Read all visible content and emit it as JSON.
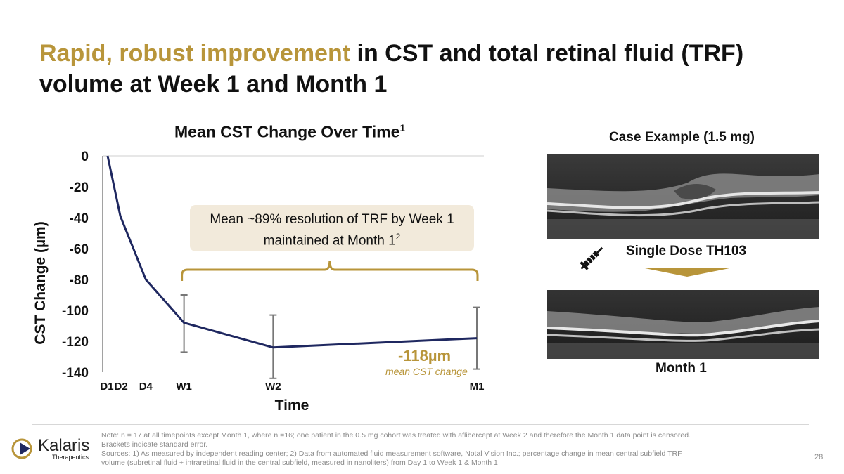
{
  "slide": {
    "title_accent": "Rapid, robust improvement",
    "title_rest": " in CST and total retinal fluid (TRF) volume at Week 1 and Month 1",
    "page_number": "28"
  },
  "chart_data": {
    "type": "line",
    "title": "Mean CST Change Over Time",
    "title_superscript": "1",
    "xlabel": "Time",
    "ylabel": "CST Change (µm)",
    "ylim": [
      -140,
      0
    ],
    "yticks": [
      0,
      -20,
      -40,
      -60,
      -80,
      -100,
      -120,
      -140
    ],
    "x_days": [
      1,
      2,
      4,
      7,
      14,
      30
    ],
    "categories": [
      "D1",
      "D2",
      "D4",
      "W1",
      "W2",
      "M1"
    ],
    "values": [
      0,
      -39,
      -80,
      -108,
      -124,
      -118
    ],
    "error_bars": [
      {
        "category": "W1",
        "low": -127,
        "high": -90
      },
      {
        "category": "W2",
        "low": -144,
        "high": -103
      },
      {
        "category": "M1",
        "low": -138,
        "high": -98
      }
    ],
    "series_color": "#1f2860",
    "grid": false,
    "annotation_value": "-118µm",
    "annotation_caption": "mean CST change",
    "callout_line1": "Mean ~89% resolution of TRF by Week 1",
    "callout_line2": "maintained at Month 1",
    "callout_superscript": "2",
    "bracket_span": [
      "W1",
      "M1"
    ]
  },
  "case": {
    "title": "Case Example (1.5 mg)",
    "dose_label": "Single Dose TH103",
    "month_label": "Month 1",
    "syringe_icon": "syringe-icon",
    "arrow_icon": "down-arrow-icon"
  },
  "footer": {
    "logo_name": "Kalaris",
    "logo_sub": "Therapeutics",
    "note_line1": "Note: n = 17 at all timepoints except Month 1, where n =16; one patient in the 0.5 mg cohort was treated with aflibercept at Week 2 and therefore the  Month 1 data point is censored. Brackets indicate standard error.",
    "note_line2": "Sources: 1) As measured by independent reading center; 2) Data from automated fluid measurement software, Notal Vision Inc.; percentage change in mean central subfield TRF volume (subretinal fluid + intraretinal fluid in the central subfield, measured in nanoliters) from Day 1 to Week 1 & Month 1"
  },
  "colors": {
    "accent_gold": "#b8953a",
    "navy": "#1f2860",
    "callout_bg": "#f2eadb"
  }
}
